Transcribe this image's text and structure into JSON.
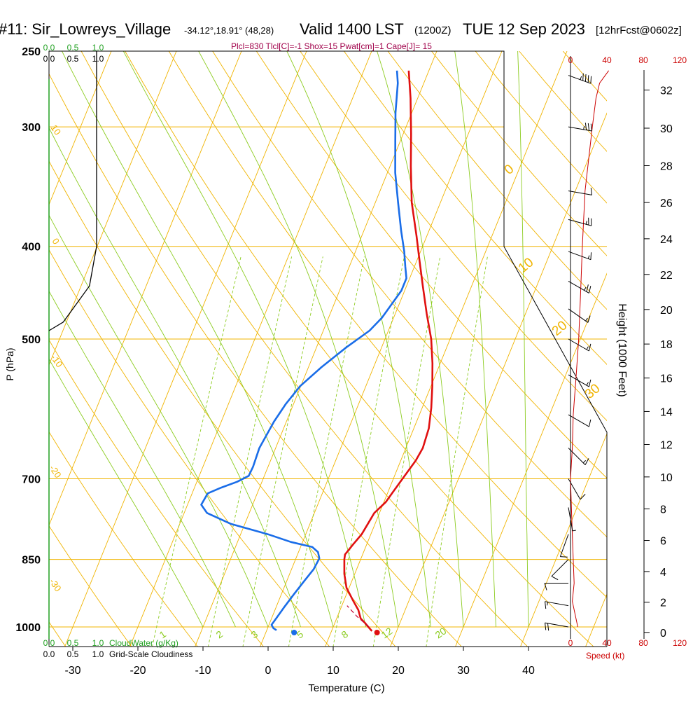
{
  "header": {
    "station": "#11: Sir_Lowreys_Village",
    "location": "-34.12°,18.91° (48,28)",
    "valid": "Valid 1400 LST",
    "zulu": "(1200Z)",
    "date": "TUE 12 Sep 2023",
    "forecast": "[12hrFcst@0602z]"
  },
  "indices": "Plcl=830 Tlcl[C]=-1 Shox=15 Pwat[cm]=1 Cape[J]= 15",
  "colors": {
    "isotherm": "#f0b400",
    "dry_adiabat": "#f0b400",
    "moist_adiabat": "#8ccc20",
    "mixing_ratio": "#8ccc20",
    "temperature": "#e01010",
    "dewpoint": "#1a6de8",
    "wind_speed": "#cc0000",
    "cloud_water": "#20a020",
    "cloudiness": "#000000",
    "indices_text": "#a0004a"
  },
  "chart_data": {
    "type": "line",
    "title": "",
    "xlabel": "Temperature (C)",
    "ylabel": "P (hPa)",
    "right_label": "Height (1000 Feet)",
    "xlim": [
      -35,
      45
    ],
    "ylim_pressure": [
      1050,
      250
    ],
    "x_ticks": [
      "-30",
      "-20",
      "-10",
      "0",
      "10",
      "20",
      "30",
      "40"
    ],
    "p_ticks": [
      {
        "p": 250,
        "label": "250"
      },
      {
        "p": 300,
        "label": "300"
      },
      {
        "p": 400,
        "label": "400"
      },
      {
        "p": 500,
        "label": "500"
      },
      {
        "p": 700,
        "label": "700"
      },
      {
        "p": 850,
        "label": "850"
      },
      {
        "p": 1000,
        "label": "1000"
      }
    ],
    "height_ticks": [
      "0",
      "2",
      "4",
      "6",
      "8",
      "10",
      "12",
      "14",
      "16",
      "18",
      "20",
      "22",
      "24",
      "26",
      "28",
      "30",
      "32"
    ],
    "top_left_scales": [
      {
        "labels": [
          "0.0",
          "0.5",
          "1.0"
        ],
        "series": "cloud_water"
      },
      {
        "labels": [
          "0.0",
          "0.5",
          "1.0"
        ],
        "series": "cloudiness"
      }
    ],
    "bottom_scales": [
      {
        "labels": [
          "0.0",
          "0.5",
          "1.0"
        ],
        "name": "CloudWater (g/Kg)"
      },
      {
        "labels": [
          "0.0",
          "0.5",
          "1.0"
        ],
        "name": "Grid-Scale Cloudiness"
      }
    ],
    "speed_axis": {
      "labels": [
        "0",
        "40",
        "80",
        "120"
      ],
      "name": "Speed (kt)"
    },
    "mixing_ratio_labels": [
      "1",
      "2",
      "3",
      "5",
      "8",
      "12",
      "20"
    ],
    "dry_adiabat_labels": [
      "10",
      "0",
      "-10",
      "-20",
      "-30"
    ],
    "theta_labels": [
      "0",
      "10",
      "20",
      "30"
    ],
    "series": [
      {
        "name": "temperature",
        "points": [
          [
            16.2,
            1010
          ],
          [
            15.4,
            1000
          ],
          [
            14.6,
            990
          ],
          [
            13.7,
            980
          ],
          [
            12.8,
            960
          ],
          [
            11.5,
            940
          ],
          [
            9.6,
            910
          ],
          [
            8.4,
            880
          ],
          [
            7.5,
            850
          ],
          [
            7.3,
            840
          ],
          [
            7.9,
            820
          ],
          [
            8.6,
            800
          ],
          [
            8.9,
            780
          ],
          [
            9.2,
            760
          ],
          [
            10.3,
            740
          ],
          [
            10.7,
            725
          ],
          [
            11.4,
            700
          ],
          [
            12.3,
            670
          ],
          [
            12.6,
            650
          ],
          [
            12.3,
            620
          ],
          [
            11.4,
            590
          ],
          [
            10.2,
            560
          ],
          [
            8.8,
            530
          ],
          [
            7.1,
            500
          ],
          [
            4.8,
            470
          ],
          [
            2.5,
            440
          ],
          [
            0.5,
            415
          ],
          [
            -1.6,
            390
          ],
          [
            -4.4,
            360
          ],
          [
            -6.8,
            330
          ],
          [
            -8.8,
            305
          ],
          [
            -11.1,
            280
          ],
          [
            -13.1,
            262
          ]
        ]
      },
      {
        "name": "dewpoint",
        "points": [
          [
            1.5,
            1008
          ],
          [
            0.9,
            1003
          ],
          [
            0.4,
            995
          ],
          [
            0.7,
            980
          ],
          [
            1.2,
            955
          ],
          [
            1.9,
            925
          ],
          [
            2.7,
            895
          ],
          [
            3.4,
            870
          ],
          [
            3.6,
            848
          ],
          [
            3.0,
            835
          ],
          [
            1.8,
            825
          ],
          [
            -1.8,
            815
          ],
          [
            -5.8,
            800
          ],
          [
            -12.2,
            780
          ],
          [
            -16.5,
            760
          ],
          [
            -17.9,
            745
          ],
          [
            -17.6,
            725
          ],
          [
            -15.9,
            715
          ],
          [
            -13.8,
            705
          ],
          [
            -12.4,
            695
          ],
          [
            -12.3,
            680
          ],
          [
            -12.5,
            650
          ],
          [
            -11.9,
            610
          ],
          [
            -11.2,
            585
          ],
          [
            -10.1,
            560
          ],
          [
            -8.0,
            535
          ],
          [
            -5.4,
            510
          ],
          [
            -2.9,
            490
          ],
          [
            -1.8,
            475
          ],
          [
            -0.5,
            445
          ],
          [
            -0.5,
            432
          ],
          [
            -1.4,
            420
          ],
          [
            -2.5,
            405
          ],
          [
            -4.3,
            385
          ],
          [
            -6.5,
            360
          ],
          [
            -8.8,
            335
          ],
          [
            -10.8,
            310
          ],
          [
            -12.5,
            290
          ],
          [
            -14.0,
            270
          ],
          [
            -14.9,
            262
          ]
        ]
      },
      {
        "name": "parcel",
        "points": [
          [
            15.5,
            1000
          ],
          [
            13.0,
            975
          ],
          [
            10.8,
            950
          ]
        ]
      }
    ],
    "surface_markers": [
      {
        "name": "temperature",
        "x": 16.2,
        "p": 1010
      },
      {
        "name": "dewpoint",
        "x": 4.0,
        "p": 1010
      }
    ],
    "cloud_fraction_profile": [
      [
        1.0,
        250
      ],
      [
        1.0,
        270
      ],
      [
        1.0,
        300
      ],
      [
        1.0,
        305
      ],
      [
        1.0,
        400
      ],
      [
        0.85,
        440
      ],
      [
        0.3,
        480
      ],
      [
        0.0,
        490
      ]
    ],
    "wind_speed_profile": [
      [
        8,
        1000
      ],
      [
        2,
        940
      ],
      [
        4,
        900
      ],
      [
        3,
        850
      ],
      [
        2,
        800
      ],
      [
        1,
        750
      ],
      [
        0,
        700
      ],
      [
        2,
        650
      ],
      [
        3,
        600
      ],
      [
        6,
        550
      ],
      [
        9,
        500
      ],
      [
        11,
        450
      ],
      [
        13,
        400
      ],
      [
        16,
        350
      ],
      [
        24,
        300
      ],
      [
        28,
        280
      ],
      [
        32,
        270
      ],
      [
        42,
        262
      ],
      [
        58,
        245
      ],
      [
        78,
        225
      ],
      [
        93,
        205
      ],
      [
        100,
        185
      ],
      [
        105,
        170
      ]
    ],
    "wind_barbs": [
      {
        "p": 265,
        "dir": 290,
        "kt": 45
      },
      {
        "p": 300,
        "dir": 280,
        "kt": 35
      },
      {
        "p": 350,
        "dir": 280,
        "kt": 10
      },
      {
        "p": 375,
        "dir": 285,
        "kt": 25
      },
      {
        "p": 405,
        "dir": 290,
        "kt": 15
      },
      {
        "p": 435,
        "dir": 300,
        "kt": 25
      },
      {
        "p": 465,
        "dir": 305,
        "kt": 15
      },
      {
        "p": 500,
        "dir": 300,
        "kt": 15
      },
      {
        "p": 545,
        "dir": 300,
        "kt": 15
      },
      {
        "p": 600,
        "dir": 300,
        "kt": 10
      },
      {
        "p": 650,
        "dir": 315,
        "kt": 15
      },
      {
        "p": 700,
        "dir": 330,
        "kt": 10
      },
      {
        "p": 750,
        "dir": 350,
        "kt": 5
      },
      {
        "p": 800,
        "dir": 20,
        "kt": 10
      },
      {
        "p": 850,
        "dir": 45,
        "kt": 10
      },
      {
        "p": 900,
        "dir": 90,
        "kt": 10
      },
      {
        "p": 950,
        "dir": 100,
        "kt": 15
      },
      {
        "p": 1000,
        "dir": 100,
        "kt": 20
      }
    ]
  }
}
